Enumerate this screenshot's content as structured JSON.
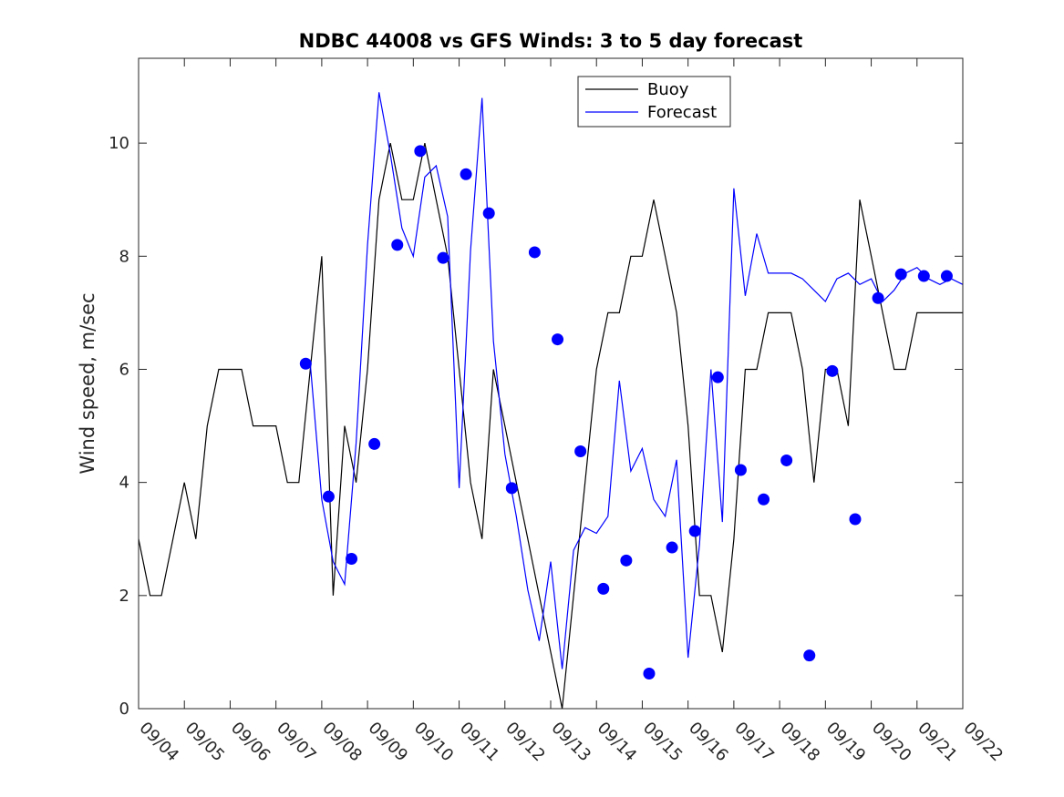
{
  "chart_data": {
    "type": "line",
    "title": "NDBC 44008 vs GFS Winds: 3 to 5 day forecast",
    "xlabel": "",
    "ylabel": "Wind speed, m/sec",
    "xlim": [
      0,
      18
    ],
    "ylim": [
      0,
      11.5
    ],
    "x_ticks": [
      "09/04",
      "09/05",
      "09/06",
      "09/07",
      "09/08",
      "09/09",
      "09/10",
      "09/11",
      "09/12",
      "09/13",
      "09/14",
      "09/15",
      "09/16",
      "09/17",
      "09/18",
      "09/19",
      "09/20",
      "09/21",
      "09/22"
    ],
    "y_ticks": [
      0,
      2,
      4,
      6,
      8,
      10
    ],
    "legend": {
      "position": "top-center",
      "entries": [
        "Buoy",
        "Forecast"
      ]
    },
    "colors": {
      "buoy": "#000000",
      "forecast": "#0000ff",
      "markers": "#0000ff"
    },
    "series": [
      {
        "name": "Buoy",
        "x": [
          0.0,
          0.25,
          0.5,
          0.75,
          1.0,
          1.25,
          1.5,
          1.75,
          2.0,
          2.25,
          2.5,
          2.75,
          3.0,
          3.25,
          3.5,
          3.75,
          4.0,
          4.25,
          4.5,
          4.75,
          5.0,
          5.25,
          5.5,
          5.75,
          6.0,
          6.25,
          6.5,
          6.75,
          7.0,
          7.25,
          7.5,
          7.75,
          8.0,
          8.25,
          8.5,
          8.75,
          9.0,
          9.25,
          9.5,
          9.75,
          10.0,
          10.25,
          10.5,
          10.75,
          11.0,
          11.25,
          11.5,
          11.75,
          12.0,
          12.25,
          12.5,
          12.75,
          13.0,
          13.25,
          13.5,
          13.75,
          14.0,
          14.25,
          14.5,
          14.75,
          15.0,
          15.25,
          15.5,
          15.75,
          16.0,
          16.25,
          16.5,
          16.75,
          17.0,
          17.25,
          17.5,
          17.75,
          18.0
        ],
        "y": [
          3,
          2,
          2,
          3,
          4,
          3,
          5,
          6,
          6,
          6,
          5,
          5,
          5,
          4,
          4,
          6,
          8,
          2,
          5,
          4,
          6,
          9,
          10,
          9,
          9,
          10,
          9,
          8,
          6,
          4,
          3,
          6,
          5,
          4,
          3,
          2,
          1,
          0,
          2,
          4,
          6,
          7,
          7,
          8,
          8,
          9,
          8,
          7,
          5,
          2,
          2,
          1,
          3,
          6,
          6,
          7,
          7,
          7,
          6,
          4,
          6,
          6,
          5,
          9,
          8,
          7,
          6,
          6,
          7,
          7,
          7,
          7,
          7
        ]
      },
      {
        "name": "Forecast",
        "x": [
          0.0,
          0.25,
          0.5,
          0.75,
          1.0,
          1.25,
          1.5,
          1.75,
          2.0,
          2.25,
          2.5,
          2.75,
          3.0,
          3.25,
          3.5,
          3.75,
          4.0,
          4.25,
          4.5,
          4.75,
          5.0,
          5.25,
          5.5,
          5.75,
          6.0,
          6.25,
          6.5,
          6.75,
          7.0,
          7.25,
          7.5,
          7.75,
          8.0,
          8.25,
          8.5,
          8.75,
          9.0,
          9.25,
          9.5,
          9.75,
          10.0,
          10.25,
          10.5,
          10.75,
          11.0,
          11.25,
          11.5,
          11.75,
          12.0,
          12.25,
          12.5,
          12.75,
          13.0,
          13.25,
          13.5,
          13.75,
          14.0,
          14.25,
          14.5,
          14.75,
          15.0,
          15.25,
          15.5,
          15.75,
          16.0,
          16.25,
          16.5,
          16.75,
          17.0,
          17.25,
          17.5,
          17.75,
          18.0
        ],
        "y": [
          null,
          null,
          null,
          null,
          null,
          null,
          null,
          null,
          null,
          null,
          null,
          null,
          null,
          null,
          null,
          6.1,
          3.7,
          2.6,
          2.2,
          4.7,
          8.2,
          10.9,
          9.8,
          8.5,
          8.0,
          9.4,
          9.6,
          8.7,
          3.9,
          8.1,
          10.8,
          6.5,
          4.5,
          3.4,
          2.1,
          1.2,
          2.6,
          0.7,
          2.8,
          3.2,
          3.1,
          3.4,
          5.8,
          4.2,
          4.6,
          3.7,
          3.4,
          4.4,
          0.9,
          2.9,
          6.0,
          3.3,
          9.2,
          7.3,
          8.4,
          7.7,
          7.7,
          7.7,
          7.6,
          7.4,
          7.2,
          7.6,
          7.7,
          7.5,
          7.6,
          7.2,
          7.4,
          7.7,
          7.8,
          7.6,
          7.5,
          7.6,
          7.5
        ]
      }
    ],
    "markers": {
      "name": "Forecast verification points",
      "x": [
        3.65,
        4.15,
        4.65,
        5.15,
        5.65,
        6.15,
        6.65,
        7.15,
        7.65,
        8.15,
        8.65,
        9.15,
        9.65,
        10.15,
        10.65,
        11.15,
        11.65,
        12.15,
        12.65,
        13.15,
        13.65,
        14.15,
        14.65,
        15.15,
        15.65,
        16.15,
        16.65,
        17.15,
        17.65
      ],
      "y": [
        6.1,
        3.75,
        2.65,
        4.68,
        8.2,
        9.86,
        7.97,
        9.45,
        8.76,
        3.9,
        8.07,
        6.53,
        4.55,
        2.12,
        2.62,
        0.62,
        2.85,
        3.14,
        5.86,
        4.22,
        3.7,
        4.39,
        0.94,
        5.97,
        3.35,
        7.26,
        7.68,
        7.65,
        7.65
      ]
    }
  }
}
